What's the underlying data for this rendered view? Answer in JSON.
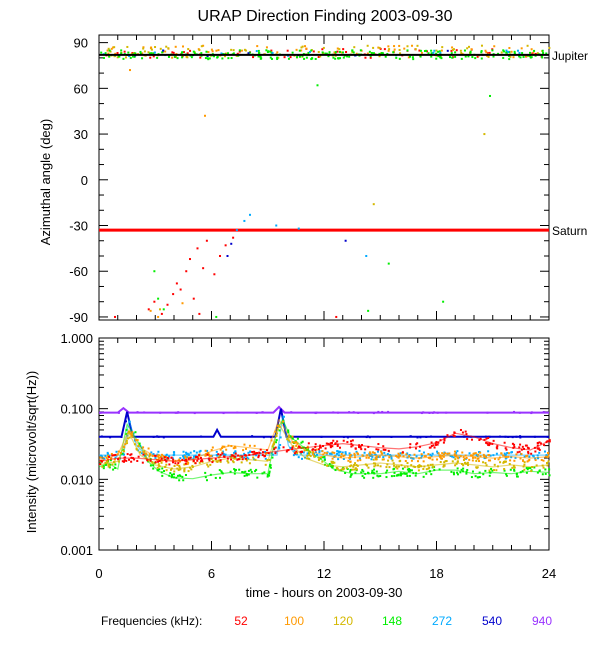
{
  "chart_data": [
    {
      "type": "scatter",
      "title": "URAP Direction Finding  2003-09-30",
      "xlabel": "",
      "ylabel": "Azimuthal angle (deg)",
      "xlim": [
        0,
        24
      ],
      "ylim": [
        -92,
        95
      ],
      "yticks": [
        90,
        60,
        30,
        0,
        -30,
        -60,
        -90
      ],
      "yticklabels": [
        "90",
        "60",
        "30",
        "0",
        "-30",
        "-60",
        "-90"
      ],
      "reference_lines": [
        {
          "label": "Jupiter",
          "value": 82,
          "color": "#000000"
        },
        {
          "label": "Saturn",
          "value": -33,
          "color": "#ff0000"
        }
      ],
      "series": [
        {
          "name": "52",
          "color": "#ff0000",
          "band_center": 83,
          "band_spread": 3,
          "count": 60
        },
        {
          "name": "100",
          "color": "#ff9900",
          "band_center": 84,
          "band_spread": 4,
          "count": 90
        },
        {
          "name": "120",
          "color": "#d4b800",
          "band_center": 84,
          "band_spread": 4,
          "count": 90
        },
        {
          "name": "148",
          "color": "#00ee00",
          "band_center": 82,
          "band_spread": 3,
          "count": 220
        },
        {
          "name": "272",
          "color": "#00aaff",
          "band_center": 83,
          "band_spread": 2,
          "count": 20
        },
        {
          "name": "540",
          "color": "#0000cc",
          "band_center": 83,
          "band_spread": 2,
          "count": 8
        }
      ],
      "scatter_points": [
        {
          "x": 2.6,
          "y": -85,
          "color": "#ff0000"
        },
        {
          "x": 2.9,
          "y": -80,
          "color": "#ff0000"
        },
        {
          "x": 3.3,
          "y": -88,
          "color": "#ff0000"
        },
        {
          "x": 3.6,
          "y": -82,
          "color": "#ff0000"
        },
        {
          "x": 3.9,
          "y": -75,
          "color": "#ff0000"
        },
        {
          "x": 4.1,
          "y": -68,
          "color": "#ff0000"
        },
        {
          "x": 4.3,
          "y": -72,
          "color": "#ff0000"
        },
        {
          "x": 4.6,
          "y": -60,
          "color": "#ff0000"
        },
        {
          "x": 4.8,
          "y": -52,
          "color": "#ff0000"
        },
        {
          "x": 5.0,
          "y": -78,
          "color": "#ff0000"
        },
        {
          "x": 5.2,
          "y": -45,
          "color": "#ff0000"
        },
        {
          "x": 5.5,
          "y": -58,
          "color": "#ff0000"
        },
        {
          "x": 5.7,
          "y": -40,
          "color": "#ff0000"
        },
        {
          "x": 6.1,
          "y": -62,
          "color": "#ff0000"
        },
        {
          "x": 6.4,
          "y": -50,
          "color": "#ff0000"
        },
        {
          "x": 6.7,
          "y": -43,
          "color": "#ff0000"
        },
        {
          "x": 7.1,
          "y": -38,
          "color": "#ff0000"
        },
        {
          "x": 5.3,
          "y": -88,
          "color": "#ff0000"
        },
        {
          "x": 0.8,
          "y": -90,
          "color": "#ff0000"
        },
        {
          "x": 12.6,
          "y": -90,
          "color": "#ff0000"
        },
        {
          "x": 2.7,
          "y": -86,
          "color": "#ff9900"
        },
        {
          "x": 3.1,
          "y": -90,
          "color": "#ff9900"
        },
        {
          "x": 4.4,
          "y": -81,
          "color": "#ff9900"
        },
        {
          "x": 1.6,
          "y": 72,
          "color": "#ff9900"
        },
        {
          "x": 5.6,
          "y": 42,
          "color": "#ff9900"
        },
        {
          "x": 14.6,
          "y": -16,
          "color": "#d4b800"
        },
        {
          "x": 3.2,
          "y": -85,
          "color": "#d4b800"
        },
        {
          "x": 20.5,
          "y": 30,
          "color": "#d4b800"
        },
        {
          "x": 2.9,
          "y": -60,
          "color": "#00ee00"
        },
        {
          "x": 3.1,
          "y": -78,
          "color": "#00ee00"
        },
        {
          "x": 3.4,
          "y": -85,
          "color": "#00ee00"
        },
        {
          "x": 6.2,
          "y": -90,
          "color": "#00ee00"
        },
        {
          "x": 11.6,
          "y": 62,
          "color": "#00ee00"
        },
        {
          "x": 15.4,
          "y": -55,
          "color": "#00ee00"
        },
        {
          "x": 18.3,
          "y": -80,
          "color": "#00ee00"
        },
        {
          "x": 14.3,
          "y": -86,
          "color": "#00ee00"
        },
        {
          "x": 20.8,
          "y": 55,
          "color": "#00ee00"
        },
        {
          "x": 7.3,
          "y": -33,
          "color": "#00aaff"
        },
        {
          "x": 7.7,
          "y": -27,
          "color": "#00aaff"
        },
        {
          "x": 8.0,
          "y": -23,
          "color": "#00aaff"
        },
        {
          "x": 9.4,
          "y": -30,
          "color": "#00aaff"
        },
        {
          "x": 10.6,
          "y": -32,
          "color": "#00aaff"
        },
        {
          "x": 14.2,
          "y": -50,
          "color": "#00aaff"
        },
        {
          "x": 6.8,
          "y": -50,
          "color": "#0000cc"
        },
        {
          "x": 7.0,
          "y": -42,
          "color": "#0000cc"
        },
        {
          "x": 13.1,
          "y": -40,
          "color": "#0000cc"
        }
      ]
    },
    {
      "type": "line",
      "title": "",
      "xlabel": "time - hours on 2003-09-30",
      "ylabel": "Intensity (microvolt/sqrt(Hz))",
      "xlim": [
        0,
        24
      ],
      "ylim": [
        0.001,
        1.0
      ],
      "yscale": "log",
      "yticks": [
        1.0,
        0.1,
        0.01,
        0.001
      ],
      "yticklabels": [
        "1.000",
        "0.100",
        "0.010",
        "0.001"
      ],
      "xticks": [
        0,
        6,
        12,
        18,
        24
      ],
      "xticklabels": [
        "0",
        "6",
        "12",
        "18",
        "24"
      ],
      "series": [
        {
          "name": "940",
          "color": "#9933ff",
          "x": [
            0,
            1.0,
            1.3,
            1.6,
            9.3,
            9.6,
            9.9,
            24
          ],
          "y": [
            0.088,
            0.088,
            0.102,
            0.088,
            0.088,
            0.106,
            0.088,
            0.088
          ]
        },
        {
          "name": "540",
          "color": "#0000cc",
          "x": [
            0,
            1.2,
            1.5,
            1.8,
            6.1,
            6.3,
            6.5,
            9.4,
            9.7,
            10.0,
            24
          ],
          "y": [
            0.04,
            0.04,
            0.09,
            0.04,
            0.04,
            0.05,
            0.04,
            0.04,
            0.1,
            0.04,
            0.04
          ]
        },
        {
          "name": "272",
          "color": "#00aaff",
          "x": [
            0,
            1.3,
            1.6,
            2.0,
            2.5,
            9.5,
            9.8,
            10.1,
            10.5,
            24
          ],
          "y": [
            0.022,
            0.022,
            0.07,
            0.03,
            0.022,
            0.022,
            0.08,
            0.03,
            0.022,
            0.022
          ]
        },
        {
          "name": "148",
          "color": "#00ee00",
          "x": [
            0,
            0.5,
            1.0,
            1.5,
            1.8,
            2.2,
            2.6,
            3.2,
            4.0,
            5.0,
            6.0,
            7.0,
            8.0,
            9.0,
            9.5,
            9.8,
            10.2,
            10.8,
            11.5,
            12.0,
            12.5,
            13.5,
            15.0,
            16.0,
            17.0,
            18.0,
            19.0,
            20.0,
            21.0,
            22.0,
            23.0,
            24.0
          ],
          "y": [
            0.015,
            0.017,
            0.014,
            0.06,
            0.045,
            0.03,
            0.018,
            0.013,
            0.0105,
            0.0102,
            0.0115,
            0.0125,
            0.012,
            0.012,
            0.05,
            0.07,
            0.04,
            0.03,
            0.022,
            0.018,
            0.014,
            0.012,
            0.012,
            0.013,
            0.012,
            0.0135,
            0.0135,
            0.012,
            0.0125,
            0.012,
            0.013,
            0.0125
          ]
        },
        {
          "name": "120",
          "color": "#d4b800",
          "x": [
            0,
            1.0,
            1.6,
            2.2,
            3.0,
            4.0,
            5.0,
            6.0,
            7.0,
            8.0,
            9.0,
            9.6,
            10.3,
            11.0,
            12.0,
            13.0,
            14.0,
            15.0,
            16.0,
            17.0,
            18.0,
            19.0,
            20.0,
            21.0,
            22.0,
            23.0,
            24.0
          ],
          "y": [
            0.016,
            0.018,
            0.045,
            0.022,
            0.016,
            0.014,
            0.015,
            0.018,
            0.02,
            0.019,
            0.018,
            0.06,
            0.03,
            0.02,
            0.016,
            0.015,
            0.016,
            0.017,
            0.016,
            0.015,
            0.016,
            0.017,
            0.016,
            0.015,
            0.016,
            0.015,
            0.016
          ]
        },
        {
          "name": "100",
          "color": "#ff9900",
          "x": [
            0,
            1.0,
            1.6,
            2.2,
            3.0,
            4.0,
            5.0,
            6.0,
            7.0,
            8.0,
            9.0,
            9.6,
            10.3,
            11.0,
            12.0,
            13.0,
            14.0,
            15.0,
            16.0,
            17.0,
            18.0,
            19.0,
            20.0,
            21.0,
            22.0,
            23.0,
            24.0
          ],
          "y": [
            0.02,
            0.022,
            0.05,
            0.028,
            0.021,
            0.018,
            0.019,
            0.025,
            0.03,
            0.028,
            0.026,
            0.07,
            0.035,
            0.026,
            0.022,
            0.02,
            0.021,
            0.022,
            0.021,
            0.02,
            0.021,
            0.022,
            0.021,
            0.02,
            0.021,
            0.02,
            0.021
          ]
        },
        {
          "name": "52",
          "color": "#ff0000",
          "x": [
            0,
            1.0,
            2.0,
            3.0,
            4.0,
            5.0,
            6.0,
            7.0,
            8.0,
            9.0,
            10.0,
            11.0,
            12.0,
            13.0,
            14.0,
            15.0,
            16.0,
            17.0,
            18.0,
            19.0,
            20.0,
            21.0,
            22.0,
            23.0,
            24.0
          ],
          "y": [
            0.018,
            0.02,
            0.02,
            0.019,
            0.018,
            0.019,
            0.02,
            0.021,
            0.022,
            0.024,
            0.026,
            0.028,
            0.03,
            0.032,
            0.03,
            0.028,
            0.027,
            0.029,
            0.033,
            0.045,
            0.04,
            0.032,
            0.028,
            0.026,
            0.035
          ]
        }
      ]
    }
  ],
  "legend": {
    "label": "Frequencies (kHz):",
    "items": [
      {
        "text": "52",
        "color": "#ff0000"
      },
      {
        "text": "100",
        "color": "#ff9900"
      },
      {
        "text": "120",
        "color": "#d4b800"
      },
      {
        "text": "148",
        "color": "#00ee00"
      },
      {
        "text": "272",
        "color": "#00aaff"
      },
      {
        "text": "540",
        "color": "#0000cc"
      },
      {
        "text": "940",
        "color": "#9933ff"
      }
    ]
  }
}
